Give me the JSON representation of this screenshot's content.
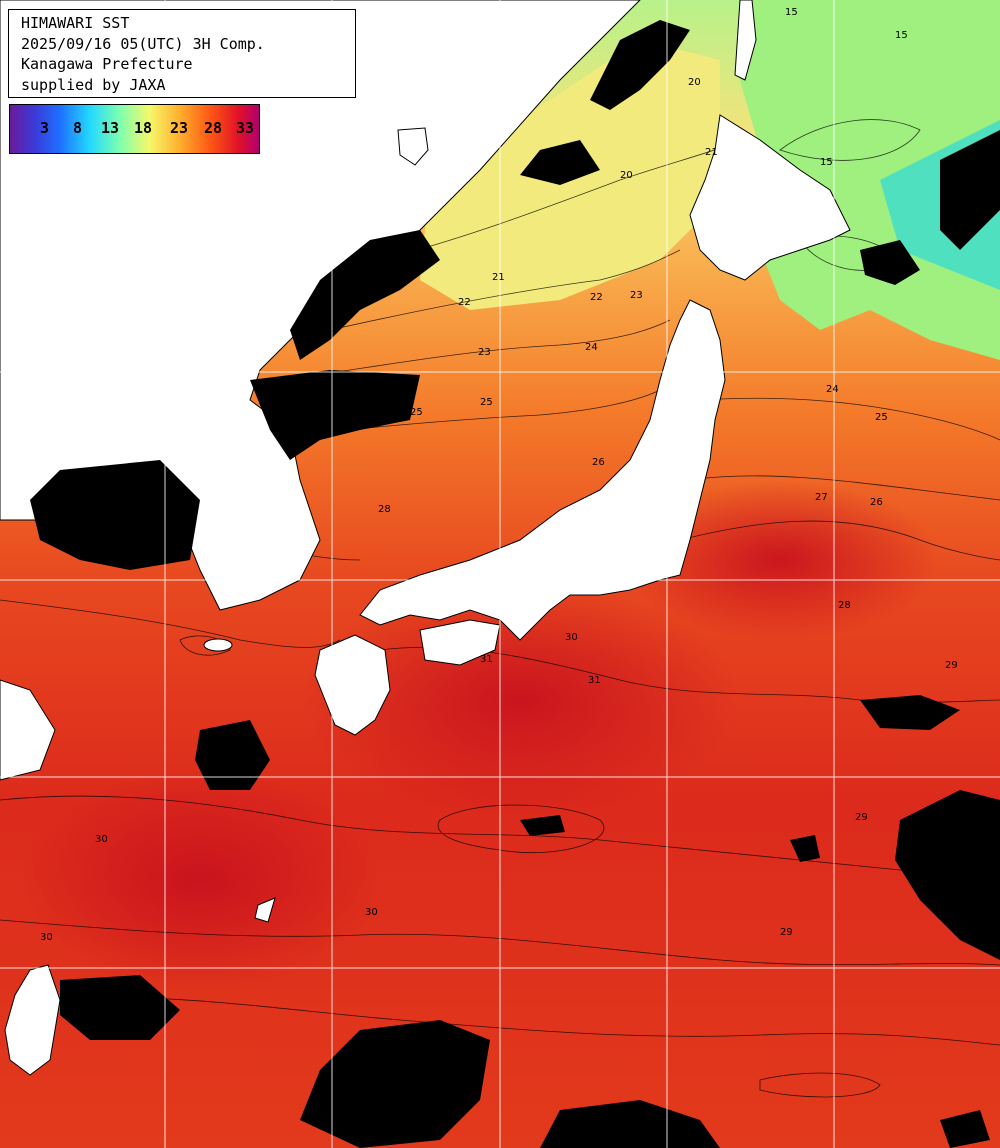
{
  "title": {
    "line1": "HIMAWARI SST",
    "line2": "2025/09/16 05(UTC) 3H Comp.",
    "line3": "Kanagawa Prefecture",
    "line4": "supplied by JAXA"
  },
  "color_scale": {
    "ticks": [
      "3",
      "8",
      "13",
      "18",
      "23",
      "28",
      "33"
    ],
    "unit": ""
  },
  "contour_labels": [
    "15",
    "15",
    "15",
    "20",
    "20",
    "21",
    "21",
    "22",
    "22",
    "23",
    "23",
    "24",
    "24",
    "25",
    "25",
    "25",
    "26",
    "26",
    "27",
    "28",
    "28",
    "28",
    "29",
    "29",
    "29",
    "30",
    "30",
    "30",
    "30",
    "31",
    "31"
  ],
  "colors": {
    "sea_warm": "#e0301c",
    "sea_hot": "#c8141e",
    "sea_mid": "#f47a2a",
    "sea_cool": "#f8c860",
    "sea_cold": "#a8f07a",
    "land": "#ffffff",
    "cloud": "#000000",
    "grid": "#ffffff"
  }
}
